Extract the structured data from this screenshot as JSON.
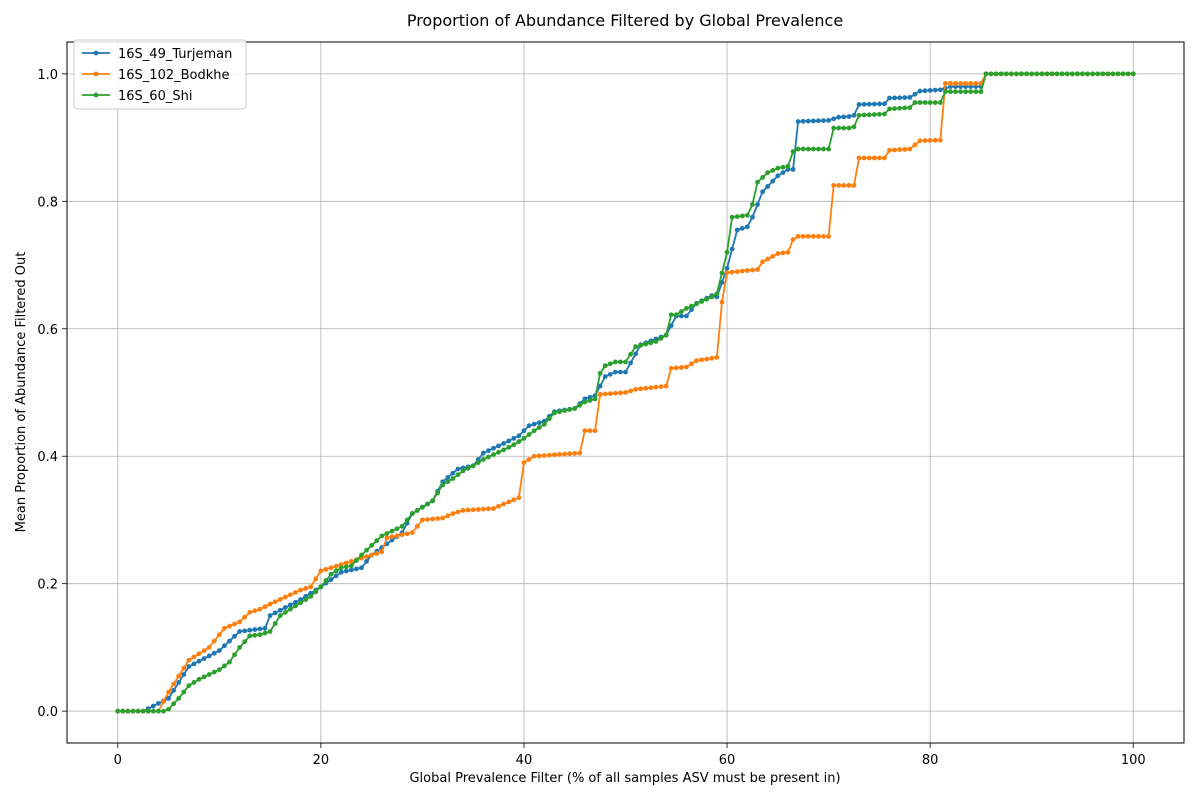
{
  "chart_data": {
    "type": "line",
    "title": "Proportion of Abundance Filtered by Global Prevalence",
    "xlabel": "Global Prevalence Filter (% of all samples ASV must be present in)",
    "ylabel": "Mean Proportion of Abundance Filtered Out",
    "xlim": [
      -5,
      105
    ],
    "ylim": [
      -0.05,
      1.05
    ],
    "xticks": [
      0,
      20,
      40,
      60,
      80,
      100
    ],
    "yticks": [
      0.0,
      0.2,
      0.4,
      0.6,
      0.8,
      1.0
    ],
    "xtick_labels": [
      "0",
      "20",
      "40",
      "60",
      "80",
      "100"
    ],
    "ytick_labels": [
      "0.0",
      "0.2",
      "0.4",
      "0.6",
      "0.8",
      "1.0"
    ],
    "grid": true,
    "legend_position": "top-left",
    "marker": "dot",
    "series": [
      {
        "name": "16S_49_Turjeman",
        "color": "#1f77b4",
        "knots": [
          [
            0,
            0
          ],
          [
            2.5,
            0
          ],
          [
            5,
            0.02
          ],
          [
            7,
            0.07
          ],
          [
            10,
            0.095
          ],
          [
            12,
            0.125
          ],
          [
            14.5,
            0.13
          ],
          [
            15,
            0.15
          ],
          [
            18,
            0.175
          ],
          [
            20,
            0.195
          ],
          [
            22,
            0.218
          ],
          [
            24,
            0.225
          ],
          [
            25,
            0.245
          ],
          [
            28,
            0.28
          ],
          [
            29,
            0.31
          ],
          [
            31,
            0.33
          ],
          [
            32,
            0.36
          ],
          [
            33.5,
            0.38
          ],
          [
            35,
            0.385
          ],
          [
            36,
            0.405
          ],
          [
            38,
            0.42
          ],
          [
            39.5,
            0.432
          ],
          [
            40.5,
            0.448
          ],
          [
            42,
            0.455
          ],
          [
            43,
            0.47
          ],
          [
            45,
            0.475
          ],
          [
            46,
            0.49
          ],
          [
            47,
            0.495
          ],
          [
            48,
            0.525
          ],
          [
            49,
            0.532
          ],
          [
            50,
            0.532
          ],
          [
            51.5,
            0.575
          ],
          [
            54,
            0.59
          ],
          [
            55,
            0.62
          ],
          [
            56,
            0.62
          ],
          [
            57,
            0.64
          ],
          [
            58.5,
            0.652
          ],
          [
            59,
            0.65
          ],
          [
            60,
            0.695
          ],
          [
            61,
            0.755
          ],
          [
            62,
            0.76
          ],
          [
            62.5,
            0.775
          ],
          [
            63.5,
            0.815
          ],
          [
            65,
            0.84
          ],
          [
            66,
            0.85
          ],
          [
            66.5,
            0.85
          ],
          [
            66.6,
            0.925
          ],
          [
            70,
            0.927
          ],
          [
            71,
            0.932
          ],
          [
            72,
            0.933
          ],
          [
            72.5,
            0.935
          ],
          [
            73,
            0.952
          ],
          [
            75.5,
            0.953
          ],
          [
            76,
            0.962
          ],
          [
            78,
            0.963
          ],
          [
            79,
            0.973
          ],
          [
            81,
            0.975
          ],
          [
            82,
            0.98
          ],
          [
            85,
            0.98
          ],
          [
            85.5,
            1.0
          ],
          [
            100,
            1.0
          ]
        ]
      },
      {
        "name": "16S_102_Bodkhe",
        "color": "#ff7f0e",
        "knots": [
          [
            0,
            0
          ],
          [
            4,
            0
          ],
          [
            5,
            0.03
          ],
          [
            7,
            0.08
          ],
          [
            9,
            0.1
          ],
          [
            10.5,
            0.13
          ],
          [
            12,
            0.14
          ],
          [
            13,
            0.155
          ],
          [
            14,
            0.16
          ],
          [
            15,
            0.168
          ],
          [
            18,
            0.19
          ],
          [
            19,
            0.195
          ],
          [
            20,
            0.22
          ],
          [
            21,
            0.225
          ],
          [
            24,
            0.24
          ],
          [
            26,
            0.25
          ],
          [
            26.5,
            0.272
          ],
          [
            29,
            0.28
          ],
          [
            30,
            0.3
          ],
          [
            32,
            0.303
          ],
          [
            33,
            0.31
          ],
          [
            34,
            0.315
          ],
          [
            37,
            0.318
          ],
          [
            38,
            0.325
          ],
          [
            39.5,
            0.335
          ],
          [
            40,
            0.39
          ],
          [
            41,
            0.4
          ],
          [
            45.5,
            0.405
          ],
          [
            46,
            0.44
          ],
          [
            47,
            0.44
          ],
          [
            47.5,
            0.497
          ],
          [
            50,
            0.5
          ],
          [
            51,
            0.505
          ],
          [
            54,
            0.51
          ],
          [
            54.5,
            0.538
          ],
          [
            56,
            0.54
          ],
          [
            57,
            0.55
          ],
          [
            59,
            0.555
          ],
          [
            59.5,
            0.642
          ],
          [
            60,
            0.688
          ],
          [
            63,
            0.693
          ],
          [
            63.5,
            0.705
          ],
          [
            65,
            0.718
          ],
          [
            66,
            0.72
          ],
          [
            66.5,
            0.74
          ],
          [
            67,
            0.745
          ],
          [
            70,
            0.745
          ],
          [
            70.5,
            0.825
          ],
          [
            72.5,
            0.825
          ],
          [
            73,
            0.868
          ],
          [
            75.5,
            0.868
          ],
          [
            76,
            0.88
          ],
          [
            78,
            0.882
          ],
          [
            79,
            0.895
          ],
          [
            81,
            0.896
          ],
          [
            81.5,
            0.985
          ],
          [
            85,
            0.985
          ],
          [
            85.5,
            1.0
          ],
          [
            100,
            1.0
          ]
        ]
      },
      {
        "name": "16S_60_Shi",
        "color": "#2ca02c",
        "knots": [
          [
            0,
            0
          ],
          [
            4.5,
            0
          ],
          [
            5,
            0.003
          ],
          [
            6,
            0.02
          ],
          [
            7,
            0.04
          ],
          [
            8,
            0.05
          ],
          [
            10,
            0.065
          ],
          [
            11,
            0.077
          ],
          [
            12,
            0.1
          ],
          [
            13,
            0.118
          ],
          [
            14,
            0.12
          ],
          [
            15,
            0.125
          ],
          [
            16,
            0.15
          ],
          [
            18,
            0.17
          ],
          [
            19,
            0.18
          ],
          [
            20,
            0.195
          ],
          [
            21,
            0.215
          ],
          [
            22,
            0.225
          ],
          [
            23,
            0.228
          ],
          [
            24,
            0.245
          ],
          [
            25,
            0.26
          ],
          [
            26,
            0.275
          ],
          [
            28,
            0.29
          ],
          [
            29,
            0.31
          ],
          [
            30,
            0.32
          ],
          [
            31,
            0.33
          ],
          [
            32,
            0.355
          ],
          [
            33,
            0.365
          ],
          [
            34,
            0.377
          ],
          [
            35,
            0.385
          ],
          [
            36,
            0.395
          ],
          [
            38,
            0.41
          ],
          [
            39,
            0.418
          ],
          [
            40,
            0.428
          ],
          [
            41,
            0.44
          ],
          [
            42,
            0.45
          ],
          [
            43,
            0.468
          ],
          [
            45,
            0.475
          ],
          [
            46,
            0.485
          ],
          [
            47,
            0.49
          ],
          [
            47.5,
            0.53
          ],
          [
            48,
            0.542
          ],
          [
            49,
            0.548
          ],
          [
            50,
            0.548
          ],
          [
            51,
            0.572
          ],
          [
            53,
            0.58
          ],
          [
            54,
            0.59
          ],
          [
            54.5,
            0.622
          ],
          [
            55,
            0.622
          ],
          [
            56,
            0.632
          ],
          [
            58.5,
            0.65
          ],
          [
            59,
            0.655
          ],
          [
            60,
            0.72
          ],
          [
            60.5,
            0.775
          ],
          [
            62,
            0.778
          ],
          [
            62.5,
            0.795
          ],
          [
            63,
            0.83
          ],
          [
            64,
            0.845
          ],
          [
            65,
            0.852
          ],
          [
            66,
            0.855
          ],
          [
            66.5,
            0.878
          ],
          [
            67,
            0.882
          ],
          [
            70,
            0.882
          ],
          [
            70.5,
            0.915
          ],
          [
            72,
            0.915
          ],
          [
            72.5,
            0.917
          ],
          [
            73,
            0.935
          ],
          [
            75.5,
            0.937
          ],
          [
            76,
            0.945
          ],
          [
            78,
            0.947
          ],
          [
            78.5,
            0.955
          ],
          [
            81,
            0.955
          ],
          [
            81.5,
            0.972
          ],
          [
            85,
            0.972
          ],
          [
            85.5,
            1.0
          ],
          [
            100,
            1.0
          ]
        ]
      }
    ]
  }
}
